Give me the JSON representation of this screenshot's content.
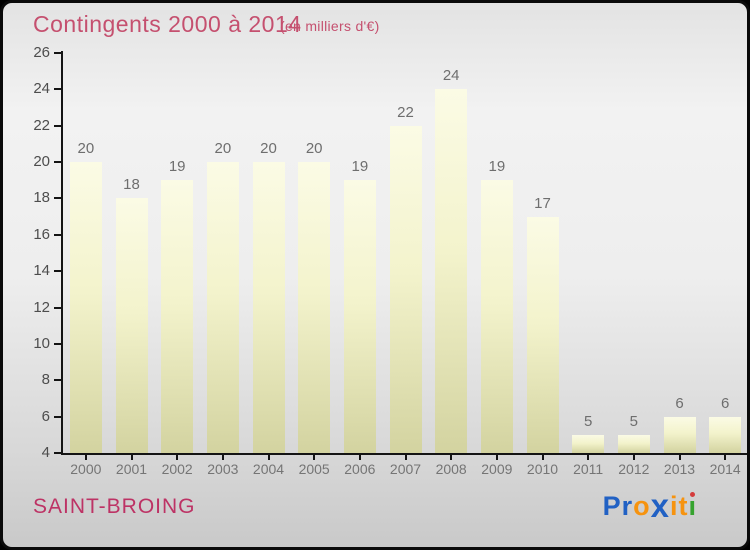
{
  "chart_data": {
    "type": "bar",
    "title": "Contingents 2000 à 2014",
    "subtitle": "(en milliers d'€)",
    "categories": [
      "2000",
      "2001",
      "2002",
      "2003",
      "2004",
      "2005",
      "2006",
      "2007",
      "2008",
      "2009",
      "2010",
      "2011",
      "2012",
      "2013",
      "2014"
    ],
    "values": [
      20,
      18,
      19,
      20,
      20,
      20,
      19,
      22,
      24,
      19,
      17,
      5,
      5,
      6,
      6
    ],
    "xlabel": "",
    "ylabel": "",
    "ylim": [
      4,
      26
    ],
    "ytick_step": 2,
    "grid": false,
    "legend": "none"
  },
  "footer": {
    "place_name": "SAINT-BROING"
  },
  "logo": {
    "text": "Proxiti",
    "letters": [
      {
        "ch": "P",
        "color": "#2161c4"
      },
      {
        "ch": "r",
        "color": "#2161c4"
      },
      {
        "ch": "o",
        "color": "#f6930f"
      },
      {
        "ch": "x",
        "color": "#2161c4",
        "big": true
      },
      {
        "ch": "i",
        "color": "#f6930f"
      },
      {
        "ch": "t",
        "color": "#f6930f"
      },
      {
        "ch": "i",
        "color": "#36a32f",
        "dot": "#d43c3c"
      }
    ]
  },
  "colors": {
    "title": "#c5506f",
    "footer": "#bd3365",
    "bar_top": "#fbfbe5",
    "bar_mid": "#f3f3cc",
    "bar_bottom": "#d3d3a0",
    "value_label": "#6e6e6e",
    "ytick_label": "#4d4d4d",
    "xtick_label": "#757575",
    "axis": "#141414"
  }
}
